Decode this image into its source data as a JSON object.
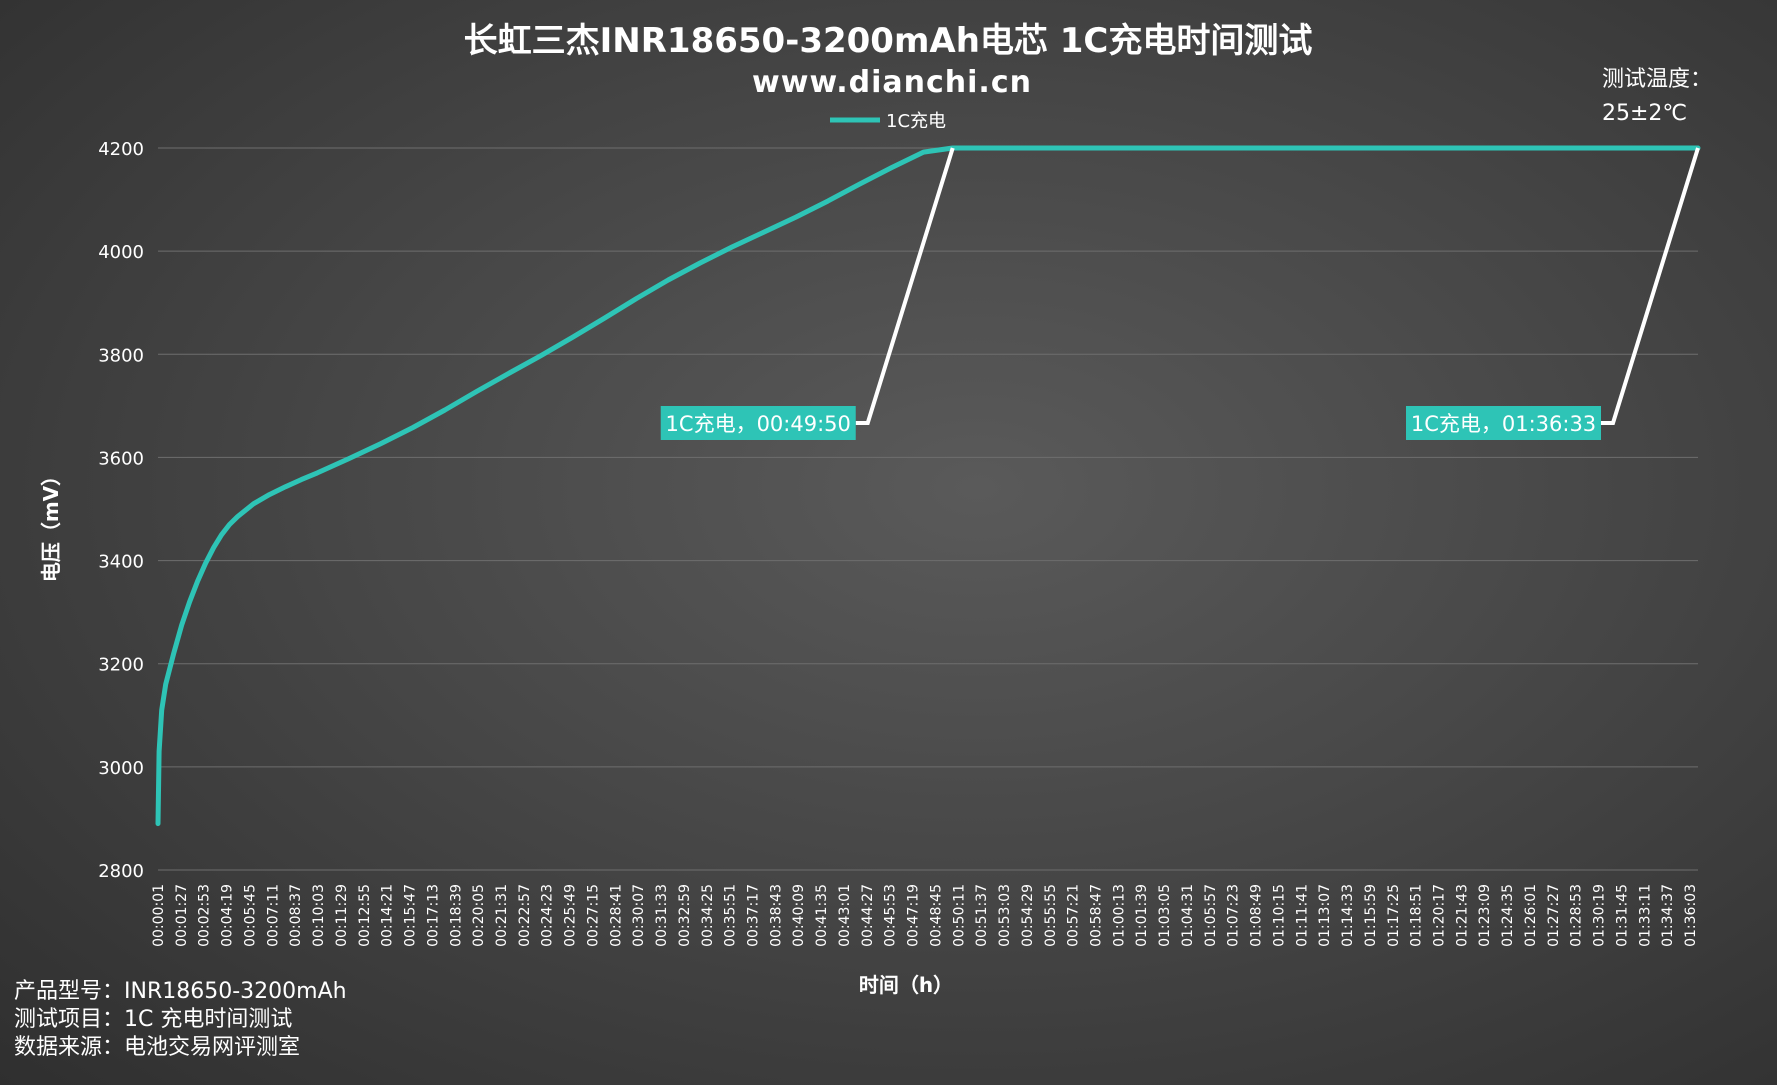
{
  "chart_data": {
    "type": "line",
    "title": "长虹三杰INR18650-3200mAh电芯 1C充电时间测试",
    "subtitle": "www.dianchi.cn",
    "xlabel": "时间（h）",
    "ylabel": "电压（mV）",
    "ylim": [
      2800,
      4200
    ],
    "yticks": [
      2800,
      3000,
      3200,
      3400,
      3600,
      3800,
      4000,
      4200
    ],
    "grid": true,
    "legend_position": "top-center",
    "series": [
      {
        "name": "1C充电",
        "color": "#2ec4b6",
        "x": [
          "00:00:01",
          "00:00:05",
          "00:00:15",
          "00:00:30",
          "00:01:00",
          "00:01:30",
          "00:02:00",
          "00:02:30",
          "00:03:00",
          "00:03:30",
          "00:04:00",
          "00:04:30",
          "00:05:00",
          "00:06:00",
          "00:07:00",
          "00:08:00",
          "00:09:00",
          "00:10:00",
          "00:12:00",
          "00:14:00",
          "00:16:00",
          "00:18:00",
          "00:20:00",
          "00:22:00",
          "00:24:00",
          "00:26:00",
          "00:28:00",
          "00:30:00",
          "00:32:00",
          "00:34:00",
          "00:36:00",
          "00:38:00",
          "00:40:00",
          "00:42:00",
          "00:44:00",
          "00:46:00",
          "00:48:00",
          "00:49:50",
          "00:55:00",
          "01:00:00",
          "01:10:00",
          "01:20:00",
          "01:30:00",
          "01:36:33"
        ],
        "values": [
          2890,
          3030,
          3110,
          3160,
          3220,
          3275,
          3320,
          3360,
          3395,
          3425,
          3450,
          3470,
          3485,
          3510,
          3528,
          3543,
          3557,
          3570,
          3598,
          3627,
          3658,
          3692,
          3728,
          3763,
          3797,
          3833,
          3870,
          3908,
          3944,
          3977,
          4008,
          4037,
          4066,
          4097,
          4130,
          4162,
          4192,
          4200,
          4200,
          4200,
          4200,
          4200,
          4200,
          4200
        ]
      }
    ],
    "xtick_labels": [
      "00:00:01",
      "00:01:27",
      "00:02:53",
      "00:04:19",
      "00:05:45",
      "00:07:11",
      "00:08:37",
      "00:10:03",
      "00:11:29",
      "00:12:55",
      "00:14:21",
      "00:15:47",
      "00:17:13",
      "00:18:39",
      "00:20:05",
      "00:21:31",
      "00:22:57",
      "00:24:23",
      "00:25:49",
      "00:27:15",
      "00:28:41",
      "00:30:07",
      "00:31:33",
      "00:32:59",
      "00:34:25",
      "00:35:51",
      "00:37:17",
      "00:38:43",
      "00:40:09",
      "00:41:35",
      "00:43:01",
      "00:44:27",
      "00:45:53",
      "00:47:19",
      "00:48:45",
      "00:50:11",
      "00:51:37",
      "00:53:03",
      "00:54:29",
      "00:55:55",
      "00:57:21",
      "00:58:47",
      "01:00:13",
      "01:01:39",
      "01:03:05",
      "01:04:31",
      "01:05:57",
      "01:07:23",
      "01:08:49",
      "01:10:15",
      "01:11:41",
      "01:13:07",
      "01:14:33",
      "01:15:59",
      "01:17:25",
      "01:18:51",
      "01:20:17",
      "01:21:43",
      "01:23:09",
      "01:24:35",
      "01:26:01",
      "01:27:27",
      "01:28:53",
      "01:30:19",
      "01:31:45",
      "01:33:11",
      "01:34:37",
      "01:36:03"
    ],
    "annotations": [
      {
        "text": "1C充电，00:49:50",
        "target_x": "00:49:50",
        "target_y": 4200
      },
      {
        "text": "1C充电，01:36:33",
        "target_x": "01:36:33",
        "target_y": 4200
      }
    ]
  },
  "test_temperature": {
    "label": "测试温度：",
    "value": "25±2℃"
  },
  "footer": {
    "product": "产品型号：INR18650-3200mAh",
    "item": "测试项目：1C 充电时间测试",
    "source": "数据来源：电池交易网评测室"
  },
  "colors": {
    "series": "#2ec4b6",
    "annotation_box": "#2ec4b6",
    "leader_line": "#ffffff",
    "grid": "#6e6e6e"
  }
}
